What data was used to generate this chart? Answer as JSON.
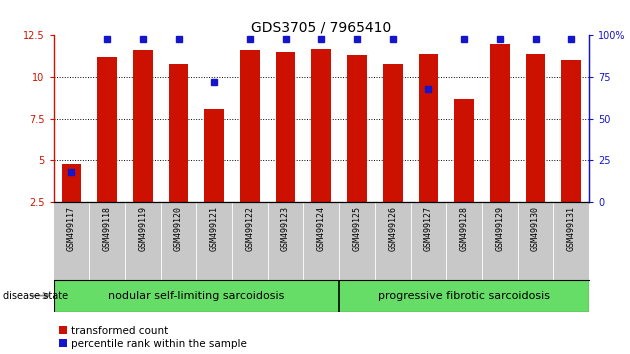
{
  "title": "GDS3705 / 7965410",
  "samples": [
    "GSM499117",
    "GSM499118",
    "GSM499119",
    "GSM499120",
    "GSM499121",
    "GSM499122",
    "GSM499123",
    "GSM499124",
    "GSM499125",
    "GSM499126",
    "GSM499127",
    "GSM499128",
    "GSM499129",
    "GSM499130",
    "GSM499131"
  ],
  "red_values": [
    4.8,
    11.2,
    11.6,
    10.8,
    8.1,
    11.6,
    11.5,
    11.7,
    11.3,
    10.8,
    11.4,
    8.7,
    12.0,
    11.4,
    11.0
  ],
  "blue_percentiles": [
    18,
    98,
    98,
    98,
    72,
    98,
    98,
    98,
    98,
    98,
    68,
    98,
    98,
    98,
    98
  ],
  "ylim_left": [
    2.5,
    12.5
  ],
  "ylim_right": [
    0,
    100
  ],
  "yticks_left": [
    2.5,
    5.0,
    7.5,
    10.0,
    12.5
  ],
  "yticks_right": [
    0,
    25,
    50,
    75,
    100
  ],
  "grid_lines": [
    5.0,
    7.5,
    10.0
  ],
  "group1_count": 8,
  "group1_label": "nodular self-limiting sarcoidosis",
  "group2_label": "progressive fibrotic sarcoidosis",
  "disease_state_label": "disease state",
  "legend_red": "transformed count",
  "legend_blue": "percentile rank within the sample",
  "bar_color": "#cc1100",
  "dot_color": "#1515cc",
  "bg_label": "#c8c8c8",
  "bg_group": "#66dd66",
  "title_fontsize": 10,
  "tick_fontsize": 7,
  "sample_fontsize": 6,
  "group_fontsize": 8,
  "legend_fontsize": 7.5
}
